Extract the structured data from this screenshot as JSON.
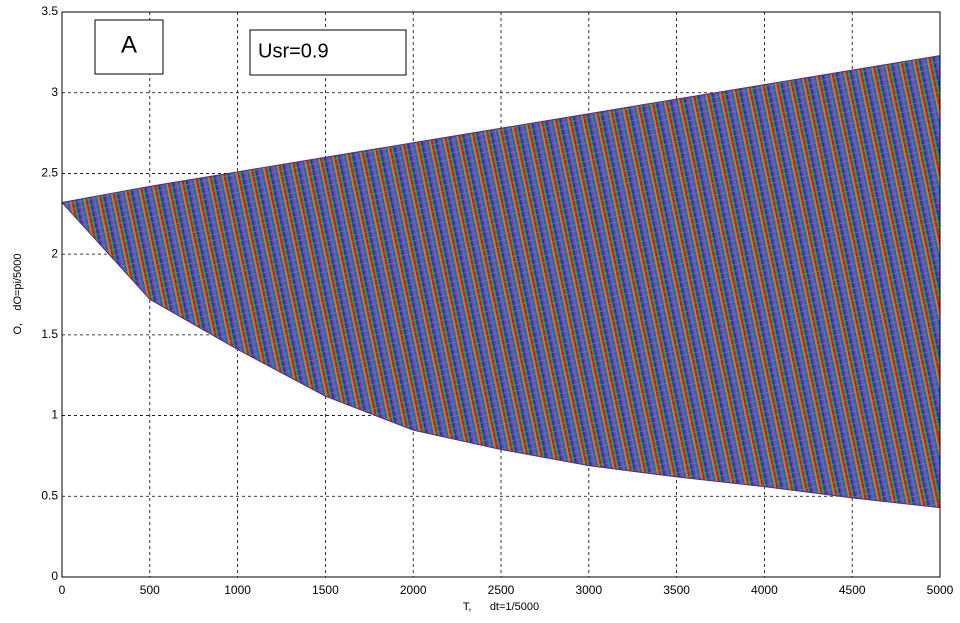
{
  "chart_data": {
    "type": "band",
    "x": [
      0,
      500,
      1000,
      1500,
      2000,
      2500,
      3000,
      3500,
      4000,
      4500,
      5000
    ],
    "series": [
      {
        "name": "upper",
        "values": [
          2.32,
          2.42,
          2.51,
          2.6,
          2.69,
          2.78,
          2.87,
          2.96,
          3.05,
          3.14,
          3.23
        ]
      },
      {
        "name": "lower",
        "values": [
          2.32,
          1.72,
          1.41,
          1.12,
          0.91,
          0.79,
          0.69,
          0.62,
          0.56,
          0.49,
          0.43
        ]
      }
    ],
    "xlim": [
      0,
      5000
    ],
    "xticks": [
      0,
      500,
      1000,
      1500,
      2000,
      2500,
      3000,
      3500,
      4000,
      4500,
      5000
    ],
    "ylim": [
      0,
      3.5
    ],
    "yticks": [
      0,
      0.5,
      1,
      1.5,
      2,
      2.5,
      3,
      3.5
    ],
    "grid": true,
    "xlabel": "T,      dt=1/5000",
    "ylabel": "O,    dO=pi/5000",
    "annotations": [
      "A",
      "Usr=0.9"
    ]
  }
}
